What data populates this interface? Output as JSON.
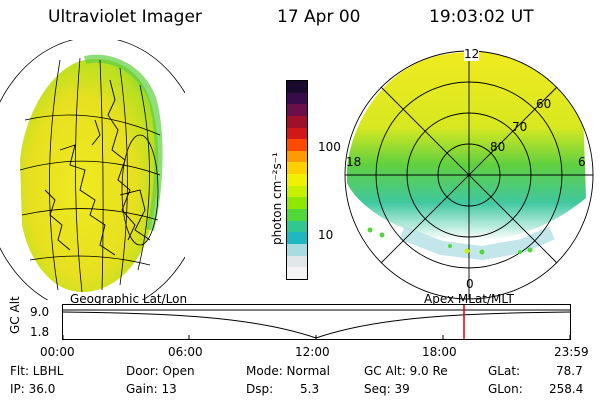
{
  "header": {
    "instrument": "Ultraviolet Imager",
    "date": "17 Apr 00",
    "time": "19:03:02 UT"
  },
  "colorbar": {
    "unit_label": "photon cm⁻²s⁻¹",
    "ticks": [
      "100",
      "10"
    ],
    "colors": [
      "#1a0a2e",
      "#3a0b4a",
      "#6a0f4a",
      "#a0102a",
      "#d01818",
      "#ff4a00",
      "#ff9a00",
      "#ffd000",
      "#f0f000",
      "#c8f000",
      "#90e800",
      "#50d838",
      "#30c890",
      "#20b8c0",
      "#a8dce0",
      "#e0e8ea",
      "#f4f4f4"
    ]
  },
  "polar_plot": {
    "mlt_labels": {
      "top": "12",
      "right": "6",
      "bottom": "0",
      "left": "18"
    },
    "lat_labels": [
      "60",
      "70",
      "80"
    ]
  },
  "timeline": {
    "left_label": "Geographic Lat/Lon",
    "right_label": "Apex MLat/MLT",
    "axis_name": "GC Alt",
    "y_ticks": [
      "9.0",
      "1.8"
    ],
    "x_ticks": [
      "00:00",
      "06:00",
      "12:00",
      "18:00",
      "23:59"
    ],
    "marker_color": "#e00000"
  },
  "status": {
    "flt": "Flt: LBHL",
    "ip": "IP: 36.0",
    "door": "Door: Open",
    "gain": "Gain: 13",
    "mode": "Mode: Normal",
    "dsp": "Dsp:",
    "dsp_value": "5.3",
    "gc_alt": "GC Alt: 9.0 Re",
    "seq": "Seq: 39",
    "glat": "GLat:",
    "glat_value": "78.7",
    "glon": "GLon:",
    "glon_value": "258.4"
  }
}
